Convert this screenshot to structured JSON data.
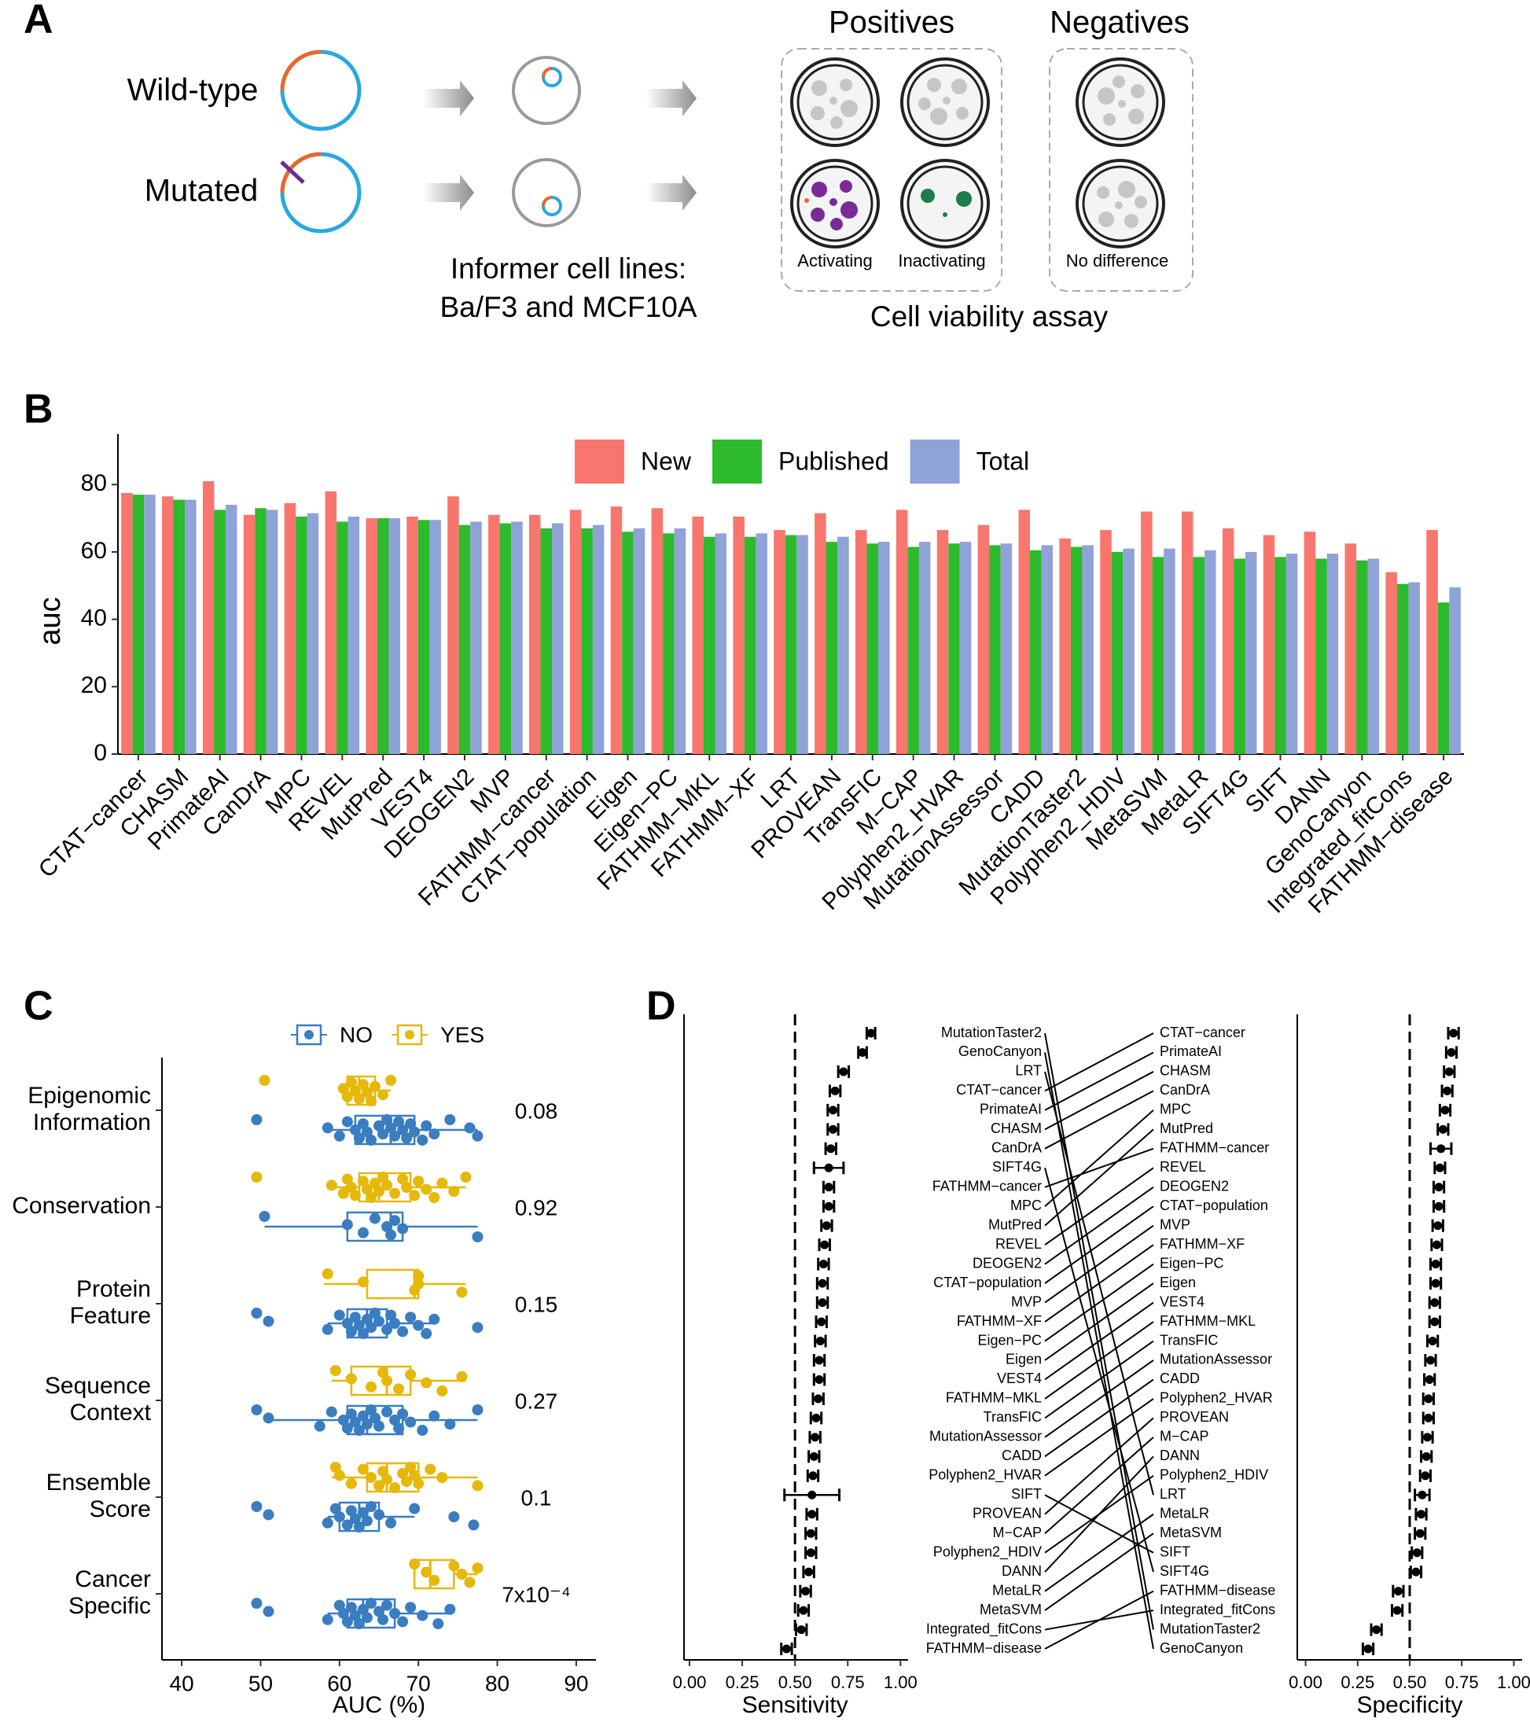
{
  "panel_labels": [
    "A",
    "B",
    "C",
    "D"
  ],
  "panel_a": {
    "wild_type": "Wild-type",
    "mutated": "Mutated",
    "informer_line1": "Informer cell lines:",
    "informer_line2": "Ba/F3 and MCF10A",
    "positives": "Positives",
    "negatives": "Negatives",
    "activating": "Activating",
    "inactivating": "Inactivating",
    "no_difference": "No difference",
    "assay": "Cell viability assay"
  },
  "chart_data": [
    {
      "type": "bar",
      "ylabel": "auc",
      "legend": "top",
      "categories": [
        "CTAT−cancer",
        "CHASM",
        "PrimateAI",
        "CanDrA",
        "MPC",
        "REVEL",
        "MutPred",
        "VEST4",
        "DEOGEN2",
        "MVP",
        "FATHMM−cancer",
        "CTAT−population",
        "Eigen",
        "Eigen−PC",
        "FATHMM−MKL",
        "FATHMM−XF",
        "LRT",
        "PROVEAN",
        "TransFIC",
        "M−CAP",
        "Polyphen2_HVAR",
        "MutationAssessor",
        "CADD",
        "MutationTaster2",
        "Polyphen2_HDIV",
        "MetaSVM",
        "MetaLR",
        "SIFT4G",
        "SIFT",
        "DANN",
        "GenoCanyon",
        "Integrated_fitCons",
        "FATHMM−disease"
      ],
      "series": [
        {
          "name": "New",
          "color": "#F8766D",
          "values": [
            77.5,
            76.5,
            81,
            71,
            74.5,
            78,
            70,
            70.5,
            76.5,
            71,
            71,
            72.5,
            73.5,
            73,
            70.5,
            70.5,
            66.5,
            71.5,
            66.5,
            72.5,
            66.5,
            68,
            72.5,
            64,
            66.5,
            72,
            72,
            67,
            65,
            66,
            62.5,
            54,
            66.5
          ]
        },
        {
          "name": "Published",
          "color": "#2DBA2D",
          "values": [
            77,
            75.5,
            72.5,
            73,
            70.5,
            69,
            70,
            69.5,
            68,
            68.5,
            67,
            67,
            66,
            65.5,
            64.5,
            64.5,
            65,
            63,
            62.5,
            61.5,
            62.5,
            62,
            60.5,
            61.5,
            60,
            58.5,
            58.5,
            58,
            58.5,
            58,
            57.5,
            50.5,
            45
          ]
        },
        {
          "name": "Total",
          "color": "#8FA3D8",
          "values": [
            77,
            75.5,
            74,
            72.5,
            71.5,
            70.5,
            70,
            69.5,
            69,
            69,
            68.5,
            68,
            67,
            67,
            65.5,
            65.5,
            65,
            64.5,
            63,
            63,
            63,
            62.5,
            62,
            62,
            61,
            61,
            60.5,
            60,
            59.5,
            59.5,
            58,
            51,
            49.5
          ]
        }
      ],
      "ylim": [
        0,
        95
      ],
      "yticks": [
        0,
        20,
        40,
        60,
        80
      ]
    },
    {
      "type": "box",
      "xlabel": "AUC (%)",
      "categories": [
        "Epigenomic Information",
        "Conservation",
        "Protein Feature",
        "Sequence Context",
        "Ensemble Score",
        "Cancer Specific"
      ],
      "p_values": [
        0.08,
        0.92,
        0.15,
        0.27,
        0.1,
        {
          "value": 0.0007,
          "label": "7x10⁻⁴"
        }
      ],
      "series": [
        {
          "name": "NO",
          "color": "#3A7DC0",
          "boxes": [
            {
              "min": 58.5,
              "q1": 62,
              "median": 66.5,
              "q3": 69.5,
              "max": 77.5,
              "points": [
                49.5,
                58.5,
                60,
                61,
                62,
                62.5,
                63,
                63.5,
                64,
                65,
                65.5,
                66,
                66.5,
                67,
                67.5,
                68,
                68.5,
                69,
                69.5,
                70.5,
                71,
                72,
                74,
                76.5,
                77.5
              ]
            },
            {
              "min": 50.5,
              "q1": 61,
              "median": 66.5,
              "q3": 68,
              "max": 77.5,
              "points": [
                50.5,
                61,
                63,
                64.5,
                66,
                66.5,
                67,
                68,
                77.5
              ]
            },
            {
              "min": 58.5,
              "q1": 61,
              "median": 63.5,
              "q3": 66,
              "max": 72,
              "points": [
                49.5,
                51,
                58.5,
                60,
                61,
                61.5,
                62,
                62.5,
                63,
                63.5,
                64,
                64.5,
                65,
                66,
                66.5,
                67,
                68,
                69,
                70,
                71,
                72,
                77.5
              ]
            },
            {
              "min": 51,
              "q1": 61,
              "median": 63.5,
              "q3": 68,
              "max": 77.5,
              "points": [
                49.5,
                51,
                57.5,
                59,
                60.5,
                61,
                61.5,
                62,
                62.5,
                63,
                63.5,
                64,
                64.5,
                65,
                66,
                67,
                67.5,
                68,
                69,
                70.5,
                72,
                74,
                77.5
              ]
            },
            {
              "min": 58.5,
              "q1": 60,
              "median": 62.5,
              "q3": 65,
              "max": 69.5,
              "points": [
                49.5,
                51,
                58.5,
                59.5,
                60,
                61,
                61.5,
                62,
                62.5,
                63,
                63.5,
                64,
                65,
                66.5,
                69.5,
                74.5,
                77
              ]
            },
            {
              "min": 58.5,
              "q1": 61,
              "median": 63,
              "q3": 67,
              "max": 74,
              "points": [
                49.5,
                51,
                58.5,
                60,
                60.5,
                61,
                61.5,
                62,
                62.5,
                63,
                63.5,
                64,
                65,
                65.5,
                66,
                67,
                68,
                69,
                70.5,
                72.5,
                74
              ]
            }
          ]
        },
        {
          "name": "YES",
          "color": "#E6B80A",
          "boxes": [
            {
              "min": 60.5,
              "q1": 61,
              "median": 62.5,
              "q3": 64.5,
              "max": 66.5,
              "points": [
                50.5,
                60.5,
                61,
                61.5,
                62,
                62.5,
                63,
                63.5,
                64,
                64.5,
                65.5,
                66.5
              ]
            },
            {
              "min": 58.5,
              "q1": 62.5,
              "median": 65,
              "q3": 69,
              "max": 76,
              "points": [
                49.5,
                59,
                60.5,
                61,
                61.5,
                62,
                63,
                63.5,
                64,
                64.5,
                65,
                65.5,
                66,
                67,
                68,
                68.5,
                69.5,
                70,
                71,
                72,
                73,
                74.5,
                76
              ]
            },
            {
              "min": 58,
              "q1": 63.5,
              "median": 69.5,
              "q3": 70,
              "max": 76,
              "points": [
                58.5,
                63,
                69.5,
                70,
                70,
                75.5
              ]
            },
            {
              "min": 59,
              "q1": 61.5,
              "median": 66,
              "q3": 69,
              "max": 76,
              "points": [
                59.5,
                61.5,
                64,
                65.5,
                66,
                67.5,
                69,
                71,
                73,
                75.5
              ]
            },
            {
              "min": 59,
              "q1": 63.5,
              "median": 66,
              "q3": 70,
              "max": 77.5,
              "points": [
                59.5,
                60,
                61.5,
                63,
                64,
                65,
                65.5,
                66,
                67,
                68,
                68.5,
                69,
                69.5,
                70,
                71.5,
                73,
                77.5
              ]
            },
            {
              "min": 69.5,
              "q1": 69.5,
              "median": 71.5,
              "q3": 74.5,
              "max": 77.5,
              "points": [
                69.5,
                71,
                72,
                74.5,
                75.5,
                76.5,
                77.5
              ]
            }
          ]
        }
      ],
      "xlim": [
        37.5,
        92.5
      ],
      "xticks": [
        40,
        50,
        60,
        70,
        80,
        90
      ]
    },
    {
      "type": "errorbar",
      "xlabel": "Sensitivity",
      "reference_line": 0.5,
      "categories": [
        "MutationTaster2",
        "GenoCanyon",
        "LRT",
        "CTAT−cancer",
        "PrimateAI",
        "CHASM",
        "CanDrA",
        "SIFT4G",
        "FATHMM−cancer",
        "MPC",
        "MutPred",
        "REVEL",
        "DEOGEN2",
        "CTAT−population",
        "MVP",
        "FATHMM−XF",
        "Eigen−PC",
        "Eigen",
        "VEST4",
        "FATHMM−MKL",
        "TransFIC",
        "MutationAssessor",
        "CADD",
        "Polyphen2_HVAR",
        "SIFT",
        "PROVEAN",
        "M−CAP",
        "Polyphen2_HDIV",
        "DANN",
        "MetaLR",
        "MetaSVM",
        "Integrated_fitCons",
        "FATHMM−disease"
      ],
      "values": [
        0.86,
        0.82,
        0.73,
        0.69,
        0.68,
        0.68,
        0.67,
        0.66,
        0.66,
        0.66,
        0.65,
        0.64,
        0.635,
        0.63,
        0.63,
        0.625,
        0.62,
        0.615,
        0.615,
        0.61,
        0.6,
        0.595,
        0.59,
        0.585,
        0.58,
        0.58,
        0.575,
        0.575,
        0.565,
        0.55,
        0.54,
        0.53,
        0.46
      ],
      "errors": [
        0.02,
        0.02,
        0.025,
        0.025,
        0.025,
        0.025,
        0.025,
        0.07,
        0.025,
        0.025,
        0.025,
        0.025,
        0.025,
        0.025,
        0.025,
        0.025,
        0.025,
        0.025,
        0.025,
        0.025,
        0.025,
        0.025,
        0.025,
        0.025,
        0.13,
        0.025,
        0.025,
        0.025,
        0.025,
        0.025,
        0.025,
        0.025,
        0.025
      ],
      "color": "#000000",
      "xlim": [
        -0.026,
        1.036
      ],
      "xticks": [
        {
          "value": 0,
          "label": "0.00"
        },
        {
          "value": 0.25,
          "label": "0.25"
        },
        {
          "value": 0.5,
          "label": "0.50"
        },
        {
          "value": 0.75,
          "label": "0.75"
        },
        {
          "value": 1,
          "label": "1.00"
        }
      ]
    },
    {
      "type": "errorbar",
      "xlabel": "Specificity",
      "reference_line": 0.5,
      "categories": [
        "CTAT−cancer",
        "PrimateAI",
        "CHASM",
        "CanDrA",
        "MPC",
        "MutPred",
        "FATHMM−cancer",
        "REVEL",
        "DEOGEN2",
        "CTAT−population",
        "MVP",
        "FATHMM−XF",
        "Eigen−PC",
        "Eigen",
        "VEST4",
        "FATHMM−MKL",
        "TransFIC",
        "MutationAssessor",
        "CADD",
        "Polyphen2_HVAR",
        "PROVEAN",
        "M−CAP",
        "DANN",
        "Polyphen2_HDIV",
        "LRT",
        "MetaLR",
        "MetaSVM",
        "SIFT",
        "SIFT4G",
        "FATHMM−disease",
        "Integrated_fitCons",
        "MutationTaster2",
        "GenoCanyon"
      ],
      "values": [
        0.71,
        0.7,
        0.69,
        0.68,
        0.67,
        0.66,
        0.65,
        0.645,
        0.64,
        0.64,
        0.635,
        0.63,
        0.625,
        0.625,
        0.62,
        0.62,
        0.61,
        0.6,
        0.595,
        0.59,
        0.59,
        0.585,
        0.58,
        0.575,
        0.56,
        0.555,
        0.55,
        0.535,
        0.53,
        0.445,
        0.44,
        0.34,
        0.3
      ],
      "errors": [
        0.025,
        0.025,
        0.025,
        0.025,
        0.025,
        0.025,
        0.05,
        0.025,
        0.025,
        0.025,
        0.025,
        0.025,
        0.025,
        0.025,
        0.025,
        0.025,
        0.025,
        0.025,
        0.025,
        0.025,
        0.025,
        0.025,
        0.025,
        0.025,
        0.035,
        0.025,
        0.025,
        0.025,
        0.025,
        0.025,
        0.025,
        0.025,
        0.025
      ],
      "color": "#000000",
      "xlim": [
        -0.04,
        1.04
      ],
      "xticks": [
        {
          "value": 0,
          "label": "0.00"
        },
        {
          "value": 0.25,
          "label": "0.25"
        },
        {
          "value": 0.5,
          "label": "0.50"
        },
        {
          "value": 0.75,
          "label": "0.75"
        },
        {
          "value": 1,
          "label": "1.00"
        }
      ]
    }
  ]
}
